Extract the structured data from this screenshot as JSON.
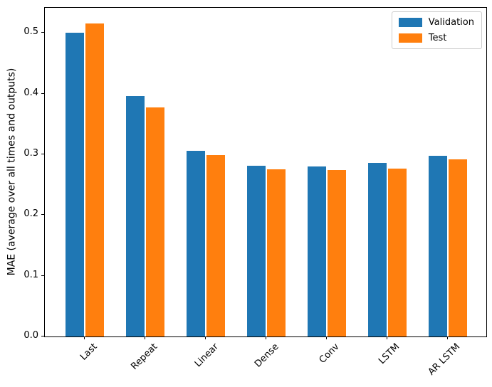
{
  "chart_data": {
    "type": "bar",
    "title": "",
    "xlabel": "",
    "ylabel": "MAE (average over all times and outputs)",
    "categories": [
      "Last",
      "Repeat",
      "Linear",
      "Dense",
      "Conv",
      "LSTM",
      "AR LSTM"
    ],
    "series": [
      {
        "name": "Validation",
        "color": "#1f77b4",
        "values": [
          0.501,
          0.396,
          0.306,
          0.281,
          0.28,
          0.286,
          0.298
        ]
      },
      {
        "name": "Test",
        "color": "#ff7f0e",
        "values": [
          0.516,
          0.377,
          0.299,
          0.276,
          0.274,
          0.277,
          0.292
        ]
      }
    ],
    "ylim": [
      0,
      0.5415
    ],
    "yticks": [
      "0.0",
      "0.1",
      "0.2",
      "0.3",
      "0.4",
      "0.5"
    ],
    "ytick_values": [
      0.0,
      0.1,
      0.2,
      0.3,
      0.4,
      0.5
    ],
    "xtick_rotation_deg": 45,
    "grid": false,
    "legend_position": "upper-right"
  }
}
